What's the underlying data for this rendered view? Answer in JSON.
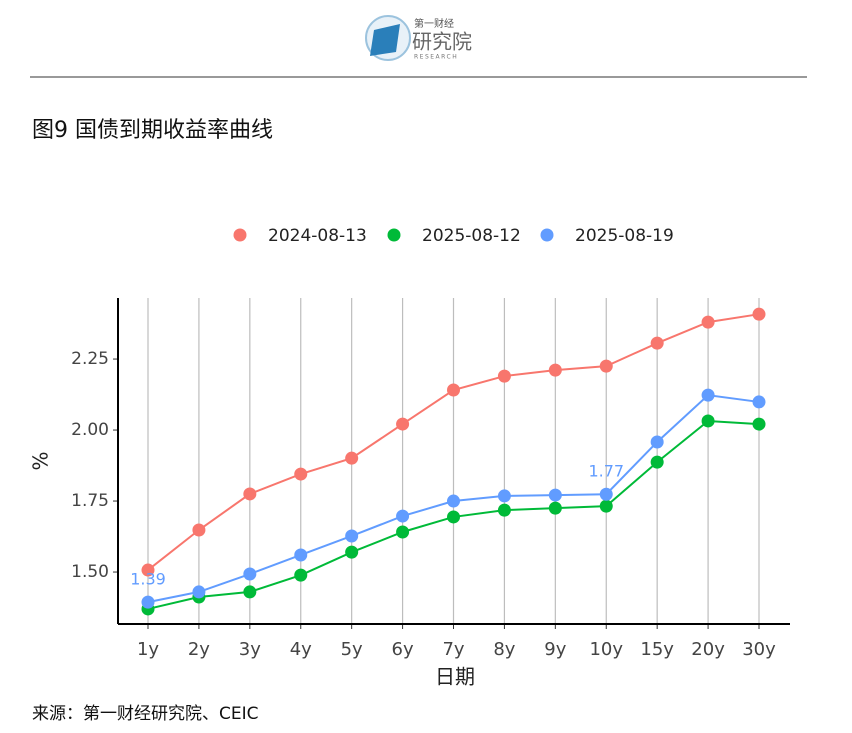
{
  "header": {
    "logo_top": "第一财经",
    "logo_main": "研究院",
    "logo_sub": "RESEARCH"
  },
  "chart_data": {
    "type": "line",
    "title": "图9 国债到期收益率曲线",
    "x_label": "日期",
    "y_label": "%",
    "categories": [
      "1y",
      "2y",
      "3y",
      "4y",
      "5y",
      "6y",
      "7y",
      "8y",
      "9y",
      "10y",
      "15y",
      "20y",
      "30y"
    ],
    "series": [
      {
        "name": "2024-08-13",
        "color": "#f8766d",
        "values": [
          1.507,
          1.648,
          1.775,
          1.845,
          1.901,
          2.021,
          2.141,
          2.19,
          2.211,
          2.225,
          2.306,
          2.38,
          2.408
        ]
      },
      {
        "name": "2025-08-12",
        "color": "#00ba38",
        "values": [
          1.37,
          1.412,
          1.43,
          1.489,
          1.57,
          1.641,
          1.694,
          1.718,
          1.725,
          1.732,
          1.887,
          2.032,
          2.021
        ]
      },
      {
        "name": "2025-08-19",
        "color": "#619cff",
        "values": [
          1.394,
          1.43,
          1.493,
          1.56,
          1.627,
          1.697,
          1.75,
          1.768,
          1.771,
          1.774,
          1.958,
          2.123,
          2.099
        ],
        "value_labels": [
          "1.39",
          null,
          null,
          null,
          null,
          null,
          null,
          null,
          null,
          "1.77",
          null,
          null,
          null
        ]
      }
    ],
    "ylim": [
      1.317,
      2.465
    ],
    "yticks": [
      {
        "value": 1.5,
        "label": "1.50"
      },
      {
        "value": 1.75,
        "label": "1.75"
      },
      {
        "value": 2.0,
        "label": "2.00"
      },
      2.25
    ],
    "grid": "x",
    "legend": "top"
  },
  "source": "来源：第一财经研究院、CEIC"
}
